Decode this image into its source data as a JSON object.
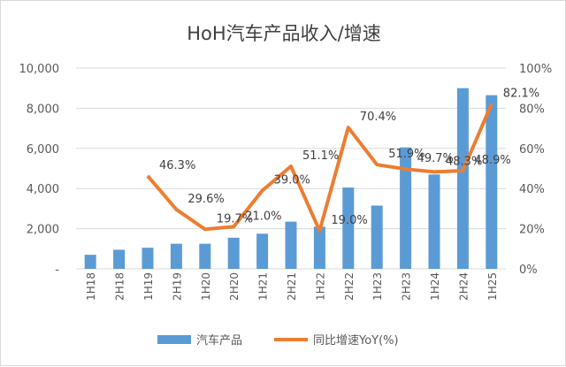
{
  "chart_data": {
    "type": "bar+line",
    "title": "HoH汽车产品收入/增速",
    "categories": [
      "1H18",
      "2H18",
      "1H19",
      "2H19",
      "1H20",
      "2H20",
      "1H21",
      "2H21",
      "1H22",
      "2H22",
      "1H23",
      "2H23",
      "1H24",
      "2H24",
      "1H25"
    ],
    "series": [
      {
        "name": "汽车产品",
        "type": "bar",
        "axis": "left",
        "color": "#5b9bd5",
        "values": [
          700,
          950,
          1050,
          1250,
          1250,
          1550,
          1750,
          2350,
          2100,
          4050,
          3150,
          6050,
          4700,
          9000,
          8650
        ]
      },
      {
        "name": "同比增速YoY(%)",
        "type": "line",
        "axis": "right",
        "color": "#ed7d31",
        "values": [
          null,
          null,
          46.3,
          29.6,
          19.7,
          21.0,
          39.0,
          51.1,
          19.0,
          70.4,
          51.9,
          49.7,
          48.3,
          48.9,
          82.1
        ],
        "labels": [
          "",
          "",
          "46.3%",
          "29.6%",
          "19.7%",
          "21.0%",
          "39.0%",
          "51.1%",
          "19.0%",
          "70.4%",
          "51.9%",
          "49.7%",
          "48.3%",
          "48.9%",
          "82.1%"
        ]
      }
    ],
    "y_left": {
      "range": [
        0,
        10000
      ],
      "ticks": [
        "-",
        "2,000",
        "4,000",
        "6,000",
        "8,000",
        "10,000"
      ]
    },
    "y_right": {
      "range": [
        0,
        100
      ],
      "ticks": [
        "0%",
        "20%",
        "40%",
        "60%",
        "80%",
        "100%"
      ]
    },
    "grid": true,
    "legend": "bottom"
  }
}
